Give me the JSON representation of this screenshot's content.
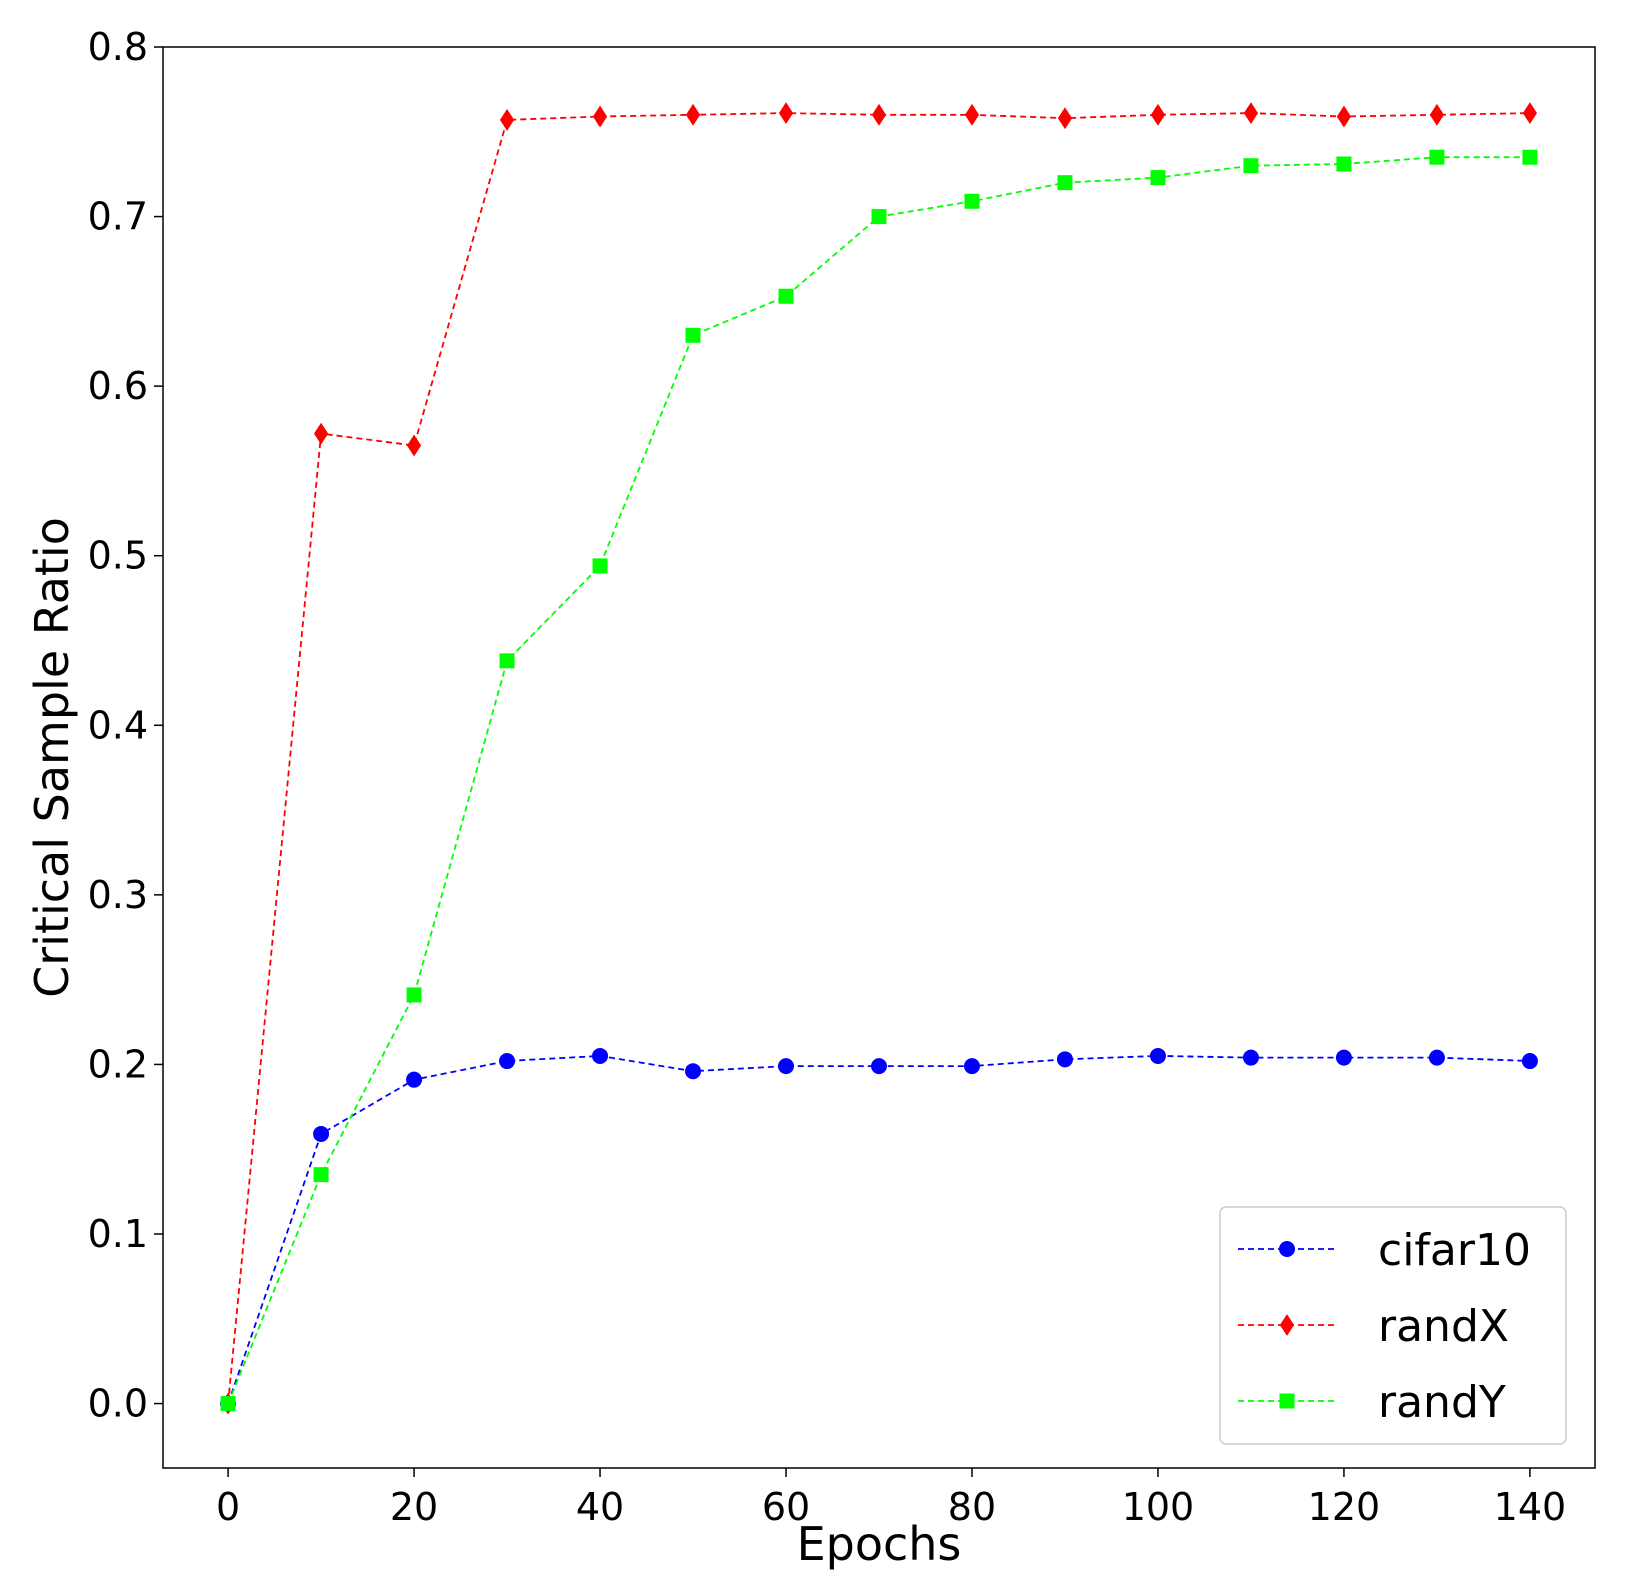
{
  "chart_data": {
    "type": "line",
    "title": "",
    "xlabel": "Epochs",
    "ylabel": "Critical Sample Ratio",
    "xlim": [
      -7,
      147
    ],
    "ylim": [
      -0.038,
      0.8
    ],
    "xticks": [
      0,
      20,
      40,
      60,
      80,
      100,
      120,
      140
    ],
    "yticks": [
      0.0,
      0.1,
      0.2,
      0.3,
      0.4,
      0.5,
      0.6,
      0.7,
      0.8
    ],
    "xtick_labels": [
      "0",
      "20",
      "40",
      "60",
      "80",
      "100",
      "120",
      "140"
    ],
    "ytick_labels": [
      "0.0",
      "0.1",
      "0.2",
      "0.3",
      "0.4",
      "0.5",
      "0.6",
      "0.7",
      "0.8"
    ],
    "grid": false,
    "legend_position": "bottom-right",
    "x": [
      0,
      10,
      20,
      30,
      40,
      50,
      60,
      70,
      80,
      90,
      100,
      110,
      120,
      130,
      140
    ],
    "series": [
      {
        "name": "cifar10",
        "color": "#0000ff",
        "marker": "circle",
        "line_style": "dashed",
        "values": [
          0.0,
          0.159,
          0.191,
          0.202,
          0.205,
          0.196,
          0.199,
          0.199,
          0.199,
          0.203,
          0.205,
          0.204,
          0.204,
          0.204,
          0.202
        ]
      },
      {
        "name": "randX",
        "color": "#ff0000",
        "marker": "diamond",
        "line_style": "dashed",
        "values": [
          0.0,
          0.572,
          0.565,
          0.757,
          0.759,
          0.76,
          0.761,
          0.76,
          0.76,
          0.758,
          0.76,
          0.761,
          0.759,
          0.76,
          0.761
        ]
      },
      {
        "name": "randY",
        "color": "#00ff00",
        "marker": "square",
        "line_style": "dashed",
        "values": [
          0.0,
          0.135,
          0.241,
          0.438,
          0.494,
          0.63,
          0.653,
          0.7,
          0.709,
          0.72,
          0.723,
          0.73,
          0.731,
          0.735,
          0.735
        ]
      }
    ]
  }
}
